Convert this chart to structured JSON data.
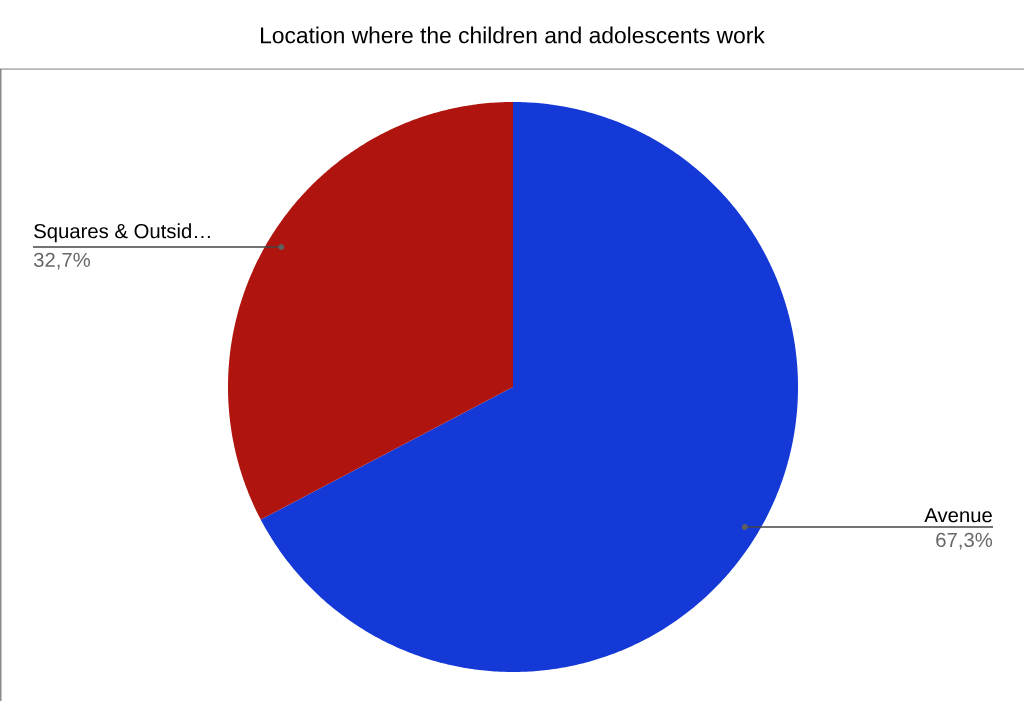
{
  "chart_data": {
    "type": "pie",
    "title": "Location where the children and adolescents work",
    "categories": [
      "Avenue",
      "Squares & Outsid…"
    ],
    "values": [
      67.3,
      32.7
    ],
    "colors": [
      "#1439d6",
      "#af150e"
    ],
    "value_labels": [
      "67,3%",
      "32,7%"
    ]
  }
}
